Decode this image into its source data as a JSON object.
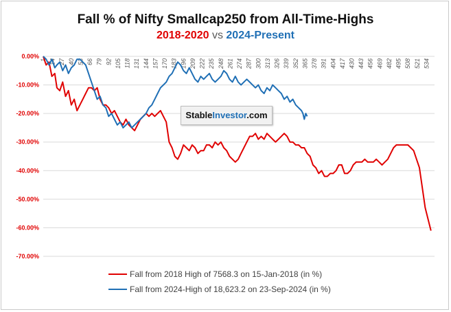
{
  "title": "Fall % of Nifty Smallcap250 from All-Time-Highs",
  "subtitle": {
    "part1": "2018-2020",
    "vs": "vs",
    "part2": "2024-Present"
  },
  "watermark": {
    "part1": "Stable",
    "part2": "Investor",
    "part3": ".com"
  },
  "colors": {
    "series_2018": "#e00000",
    "series_2024": "#1f6fb5",
    "grid": "#d9d9d9",
    "axis_text": "#595959"
  },
  "chart_data": {
    "type": "line",
    "title": "Fall % of Nifty Smallcap250 from All-Time-Highs",
    "ylim": [
      -70,
      0
    ],
    "yticks": [
      0,
      -10,
      -20,
      -30,
      -40,
      -50,
      -60,
      -70
    ],
    "ytick_labels": [
      "0.00%",
      "-10.00%",
      "-20.00%",
      "-30.00%",
      "-40.00%",
      "-50.00%",
      "-60.00%",
      "-70.00%"
    ],
    "xlim": [
      1,
      545
    ],
    "xticks": [
      1,
      14,
      27,
      40,
      53,
      66,
      79,
      92,
      105,
      118,
      131,
      144,
      157,
      170,
      183,
      196,
      209,
      222,
      235,
      248,
      261,
      274,
      287,
      300,
      313,
      326,
      339,
      352,
      365,
      378,
      391,
      404,
      417,
      430,
      443,
      456,
      469,
      482,
      495,
      508,
      521,
      534
    ],
    "grid": true,
    "legend_position": "bottom",
    "series": [
      {
        "name": "Fall from 2018 High of 7568.3 on 15-Jan-2018 (in %)",
        "color": "#e00000",
        "points": [
          [
            1,
            0
          ],
          [
            5,
            -3
          ],
          [
            9,
            -2
          ],
          [
            13,
            -7
          ],
          [
            17,
            -6
          ],
          [
            20,
            -11
          ],
          [
            24,
            -12
          ],
          [
            28,
            -9
          ],
          [
            32,
            -14
          ],
          [
            36,
            -12
          ],
          [
            40,
            -17
          ],
          [
            44,
            -15
          ],
          [
            48,
            -19
          ],
          [
            52,
            -17
          ],
          [
            56,
            -15
          ],
          [
            60,
            -13
          ],
          [
            64,
            -11
          ],
          [
            68,
            -11
          ],
          [
            72,
            -12
          ],
          [
            76,
            -11
          ],
          [
            80,
            -15
          ],
          [
            84,
            -17
          ],
          [
            88,
            -17
          ],
          [
            92,
            -18
          ],
          [
            96,
            -20
          ],
          [
            100,
            -19
          ],
          [
            104,
            -21
          ],
          [
            108,
            -23
          ],
          [
            112,
            -24
          ],
          [
            116,
            -22
          ],
          [
            120,
            -24
          ],
          [
            124,
            -25
          ],
          [
            128,
            -26
          ],
          [
            132,
            -24
          ],
          [
            136,
            -22
          ],
          [
            140,
            -21
          ],
          [
            144,
            -20
          ],
          [
            148,
            -21
          ],
          [
            152,
            -20
          ],
          [
            156,
            -21
          ],
          [
            160,
            -20
          ],
          [
            164,
            -19
          ],
          [
            168,
            -21
          ],
          [
            172,
            -23
          ],
          [
            176,
            -30
          ],
          [
            180,
            -32
          ],
          [
            184,
            -35
          ],
          [
            188,
            -36
          ],
          [
            192,
            -34
          ],
          [
            196,
            -31
          ],
          [
            200,
            -32
          ],
          [
            204,
            -33
          ],
          [
            208,
            -31
          ],
          [
            212,
            -32
          ],
          [
            216,
            -34
          ],
          [
            220,
            -33
          ],
          [
            224,
            -33
          ],
          [
            228,
            -31
          ],
          [
            232,
            -31
          ],
          [
            236,
            -32
          ],
          [
            240,
            -30
          ],
          [
            244,
            -31
          ],
          [
            248,
            -30
          ],
          [
            252,
            -32
          ],
          [
            256,
            -33
          ],
          [
            260,
            -35
          ],
          [
            264,
            -36
          ],
          [
            268,
            -37
          ],
          [
            272,
            -36
          ],
          [
            276,
            -34
          ],
          [
            280,
            -32
          ],
          [
            284,
            -30
          ],
          [
            288,
            -28
          ],
          [
            292,
            -28
          ],
          [
            296,
            -27
          ],
          [
            300,
            -29
          ],
          [
            304,
            -28
          ],
          [
            308,
            -29
          ],
          [
            312,
            -27
          ],
          [
            316,
            -28
          ],
          [
            320,
            -29
          ],
          [
            324,
            -30
          ],
          [
            328,
            -29
          ],
          [
            332,
            -28
          ],
          [
            336,
            -27
          ],
          [
            340,
            -28
          ],
          [
            344,
            -30
          ],
          [
            348,
            -30
          ],
          [
            352,
            -31
          ],
          [
            356,
            -31
          ],
          [
            360,
            -32
          ],
          [
            364,
            -32
          ],
          [
            368,
            -34
          ],
          [
            372,
            -35
          ],
          [
            376,
            -38
          ],
          [
            380,
            -39
          ],
          [
            384,
            -41
          ],
          [
            388,
            -40
          ],
          [
            392,
            -42
          ],
          [
            396,
            -42
          ],
          [
            400,
            -41
          ],
          [
            404,
            -41
          ],
          [
            408,
            -40
          ],
          [
            412,
            -38
          ],
          [
            416,
            -38
          ],
          [
            420,
            -41
          ],
          [
            424,
            -41
          ],
          [
            428,
            -40
          ],
          [
            432,
            -38
          ],
          [
            436,
            -37
          ],
          [
            440,
            -37
          ],
          [
            444,
            -37
          ],
          [
            448,
            -36
          ],
          [
            452,
            -37
          ],
          [
            456,
            -37
          ],
          [
            460,
            -37
          ],
          [
            464,
            -36
          ],
          [
            468,
            -37
          ],
          [
            472,
            -38
          ],
          [
            476,
            -37
          ],
          [
            480,
            -36
          ],
          [
            484,
            -34
          ],
          [
            488,
            -32
          ],
          [
            492,
            -31
          ],
          [
            496,
            -31
          ],
          [
            500,
            -31
          ],
          [
            504,
            -31
          ],
          [
            508,
            -31
          ],
          [
            512,
            -32
          ],
          [
            516,
            -33
          ],
          [
            520,
            -36
          ],
          [
            524,
            -39
          ],
          [
            528,
            -46
          ],
          [
            532,
            -53
          ],
          [
            536,
            -57
          ],
          [
            540,
            -61
          ]
        ]
      },
      {
        "name": "Fall from 2024-High of 18,623.2 on 23-Sep-2024 (in %)",
        "color": "#1f6fb5",
        "points": [
          [
            1,
            0
          ],
          [
            5,
            -1
          ],
          [
            9,
            -3
          ],
          [
            13,
            -1
          ],
          [
            17,
            -4
          ],
          [
            20,
            -3
          ],
          [
            24,
            -2
          ],
          [
            28,
            -5
          ],
          [
            32,
            -3
          ],
          [
            36,
            -6
          ],
          [
            40,
            -4
          ],
          [
            44,
            -3
          ],
          [
            48,
            -1
          ],
          [
            52,
            -1
          ],
          [
            56,
            -2
          ],
          [
            60,
            -3
          ],
          [
            64,
            -6
          ],
          [
            68,
            -9
          ],
          [
            72,
            -12
          ],
          [
            76,
            -15
          ],
          [
            80,
            -14
          ],
          [
            84,
            -17
          ],
          [
            88,
            -18
          ],
          [
            92,
            -21
          ],
          [
            96,
            -20
          ],
          [
            100,
            -22
          ],
          [
            104,
            -24
          ],
          [
            108,
            -23
          ],
          [
            112,
            -25
          ],
          [
            116,
            -24
          ],
          [
            120,
            -23
          ],
          [
            124,
            -25
          ],
          [
            128,
            -24
          ],
          [
            132,
            -23
          ],
          [
            136,
            -22
          ],
          [
            140,
            -21
          ],
          [
            144,
            -20
          ],
          [
            148,
            -18
          ],
          [
            152,
            -17
          ],
          [
            156,
            -15
          ],
          [
            160,
            -13
          ],
          [
            164,
            -11
          ],
          [
            168,
            -10
          ],
          [
            172,
            -9
          ],
          [
            176,
            -7
          ],
          [
            180,
            -6
          ],
          [
            184,
            -4
          ],
          [
            188,
            -2
          ],
          [
            192,
            -3
          ],
          [
            196,
            -5
          ],
          [
            200,
            -6
          ],
          [
            204,
            -4
          ],
          [
            208,
            -6
          ],
          [
            212,
            -8
          ],
          [
            216,
            -9
          ],
          [
            220,
            -7
          ],
          [
            224,
            -8
          ],
          [
            228,
            -7
          ],
          [
            232,
            -6
          ],
          [
            236,
            -8
          ],
          [
            240,
            -9
          ],
          [
            244,
            -8
          ],
          [
            248,
            -7
          ],
          [
            252,
            -5
          ],
          [
            256,
            -6
          ],
          [
            260,
            -8
          ],
          [
            264,
            -9
          ],
          [
            268,
            -7
          ],
          [
            272,
            -9
          ],
          [
            276,
            -10
          ],
          [
            280,
            -9
          ],
          [
            284,
            -8
          ],
          [
            288,
            -9
          ],
          [
            292,
            -10
          ],
          [
            296,
            -11
          ],
          [
            300,
            -10
          ],
          [
            304,
            -12
          ],
          [
            308,
            -13
          ],
          [
            312,
            -11
          ],
          [
            316,
            -12
          ],
          [
            320,
            -10
          ],
          [
            324,
            -11
          ],
          [
            328,
            -12
          ],
          [
            332,
            -13
          ],
          [
            336,
            -15
          ],
          [
            340,
            -14
          ],
          [
            344,
            -16
          ],
          [
            348,
            -15
          ],
          [
            352,
            -17
          ],
          [
            356,
            -18
          ],
          [
            360,
            -19
          ],
          [
            362,
            -20
          ],
          [
            364,
            -22
          ],
          [
            366,
            -20
          ],
          [
            368,
            -21
          ]
        ]
      }
    ]
  }
}
